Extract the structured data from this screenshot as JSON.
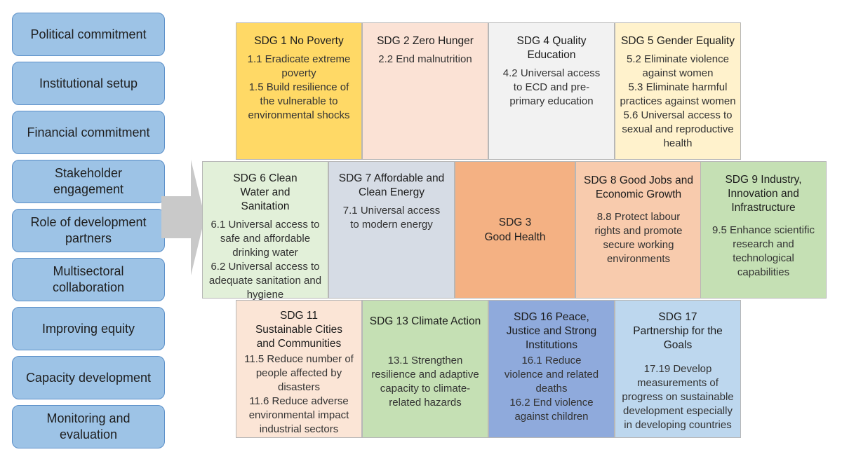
{
  "enablers": [
    {
      "label": "Political commitment"
    },
    {
      "label": "Institutional setup"
    },
    {
      "label": "Financial commitment"
    },
    {
      "label": "Stakeholder engagement"
    },
    {
      "label": "Role of development partners"
    },
    {
      "label": "Multisectoral collaboration"
    },
    {
      "label": "Improving equity"
    },
    {
      "label": "Capacity development"
    },
    {
      "label": "Monitoring and evaluation"
    }
  ],
  "arrow": {
    "color": "#c9c9c9"
  },
  "sdgs": {
    "sdg1": {
      "title": "SDG 1 No Poverty",
      "targets": [
        "1.1 Eradicate extreme poverty",
        "1.5 Build resilience of the vulnerable to environmental shocks"
      ],
      "color": "#ffd966"
    },
    "sdg2": {
      "title": "SDG 2 Zero Hunger",
      "targets": [
        "2.2 End malnutrition"
      ],
      "color": "#fbe2d5"
    },
    "sdg4": {
      "title": "SDG 4 Quality Education",
      "targets": [
        "4.2 Universal access to ECD and pre-primary education"
      ],
      "color": "#f2f2f2"
    },
    "sdg5": {
      "title": "SDG 5 Gender Equality",
      "targets": [
        "5.2 Eliminate violence against women",
        "5.3 Eliminate harmful practices against women",
        "5.6 Universal access to sexual and reproductive health"
      ],
      "color": "#fff2cc"
    },
    "sdg6": {
      "title": "SDG 6 Clean Water and Sanitation",
      "targets": [
        "6.1 Universal access to safe and affordable drinking water",
        "6.2 Universal access to adequate sanitation and hygiene"
      ],
      "color": "#e2f0d9"
    },
    "sdg7": {
      "title": "SDG 7 Affordable and Clean Energy",
      "targets": [
        "7.1 Universal access to modern energy"
      ],
      "color": "#d6dce5"
    },
    "sdg3": {
      "title": "SDG 3",
      "subtitle": "Good Health",
      "color": "#f4b183"
    },
    "sdg8": {
      "title": "SDG 8 Good Jobs and Economic Growth",
      "targets": [
        "8.8 Protect labour rights and promote secure working environments"
      ],
      "color": "#f8cbad"
    },
    "sdg9": {
      "title": "SDG 9 Industry, Innovation and Infrastructure",
      "targets": [
        "9.5 Enhance scientific research and technological capabilities"
      ],
      "color": "#c5e0b4"
    },
    "sdg11": {
      "title": "SDG 11 Sustainable Cities and Communities",
      "targets": [
        "11.5 Reduce number of people affected by disasters",
        "11.6 Reduce adverse environmental impact industrial sectors"
      ],
      "color": "#fbe5d6"
    },
    "sdg13": {
      "title": "SDG 13 Climate Action",
      "targets": [
        "13.1 Strengthen resilience and adaptive capacity to climate-related hazards"
      ],
      "color": "#c5e0b4"
    },
    "sdg16": {
      "title": "SDG 16 Peace, Justice and Strong Institutions",
      "targets": [
        "16.1 Reduce violence and related deaths",
        "16.2 End violence against children"
      ],
      "color": "#8faadc"
    },
    "sdg17": {
      "title": "SDG 17 Partnership for the Goals",
      "targets": [
        "17.19 Develop measurements of progress on sustainable development especially in developing countries"
      ],
      "color": "#bdd7ee"
    }
  }
}
